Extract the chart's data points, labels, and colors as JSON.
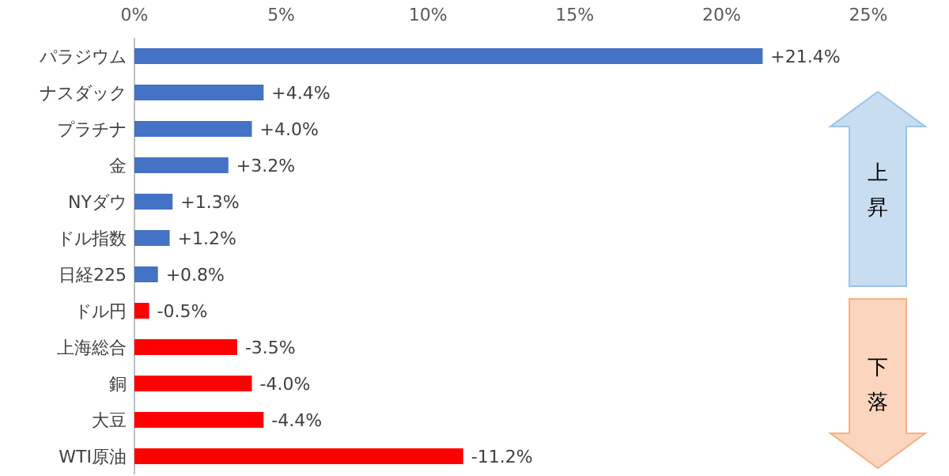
{
  "chart_data": {
    "type": "bar",
    "orientation": "horizontal",
    "categories": [
      "パラジウム",
      "ナスダック",
      "プラチナ",
      "金",
      "NYダウ",
      "ドル指数",
      "日経225",
      "ドル円",
      "上海総合",
      "銅",
      "大豆",
      "WTI原油"
    ],
    "values": [
      21.4,
      4.4,
      4.0,
      3.2,
      1.3,
      1.2,
      0.8,
      0.5,
      3.5,
      4.0,
      4.4,
      11.2
    ],
    "value_labels": [
      "+21.4%",
      "+4.4%",
      "+4.0%",
      "+3.2%",
      "+1.3%",
      "+1.2%",
      "+0.8%",
      null,
      null,
      null,
      null,
      null
    ],
    "colors": [
      "#4472c4",
      "#4472c4",
      "#4472c4",
      "#4472c4",
      "#4472c4",
      "#4472c4",
      "#4472c4",
      "#ff0000",
      "#ff0000",
      "#ff0000",
      "#ff0000",
      "#ff0000"
    ],
    "xlim": [
      0,
      25
    ],
    "xticks": [
      {
        "value": 0,
        "label": "0%"
      },
      {
        "value": 5,
        "label": "5%"
      },
      {
        "value": 10,
        "label": "10%"
      },
      {
        "value": 15,
        "label": "15%"
      },
      {
        "value": 20,
        "label": "20%"
      },
      {
        "value": 25,
        "label": "25%"
      }
    ],
    "annotations": [
      "上昇",
      "下落",
      {
        "text": "-0.5%",
        "x": 0.5,
        "y": "ドル円"
      },
      {
        "text": "-3.5%",
        "x": 3.5,
        "y": "上海総合"
      },
      {
        "text": "-4.0%",
        "x": 4.0,
        "y": "銅"
      },
      {
        "text": "-4.4%",
        "x": 4.4,
        "y": "大豆"
      },
      {
        "text": "-11.2%",
        "x": 11.2,
        "y": "WTI原油"
      }
    ]
  }
}
